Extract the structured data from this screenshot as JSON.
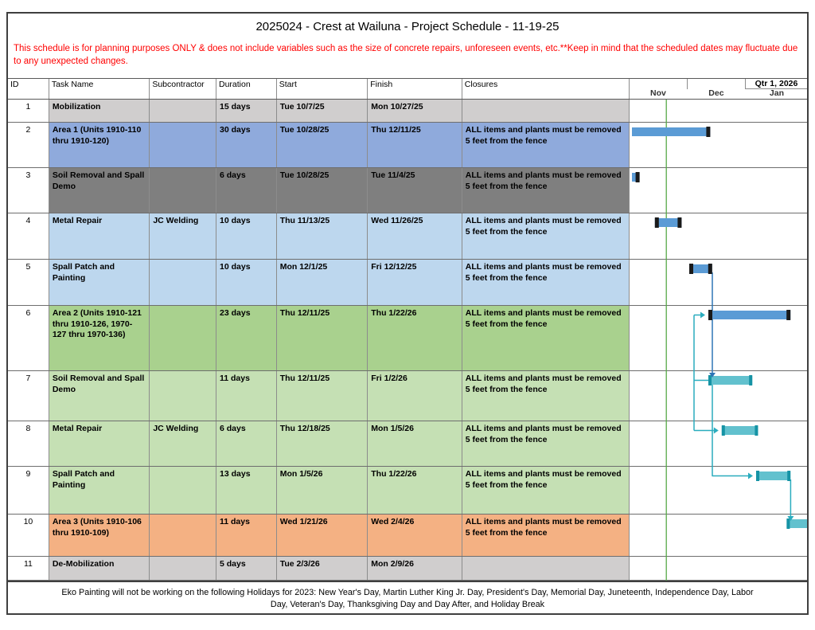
{
  "title": "2025024 - Crest at Wailuna - Project Schedule - 11-19-25",
  "disclaimer": "This schedule is for planning purposes ONLY & does not include variables such as the size of concrete repairs, unforeseen events, etc.**Keep in mind that the scheduled dates may fluctuate due to any unexpected changes.",
  "footer_note": "Eko Painting will not be working on the following Holidays for 2023: New Year's Day, Martin Luther King Jr. Day, President's Day, Memorial Day, Juneteenth, Independence Day, Labor Day, Veteran's Day, Thanksgiving Day and Day After, and Holiday Break",
  "columns": [
    "ID",
    "Task Name",
    "Subcontractor",
    "Duration",
    "Start",
    "Finish",
    "Closures"
  ],
  "timeline": {
    "quarter_label": "Qtr 1, 2026",
    "months": [
      "Nov",
      "Dec",
      "Jan"
    ],
    "status_date": "11/19/25",
    "status_line_color": "#56A946"
  },
  "colors": {
    "bar_blue": "#5B9BD5",
    "bar_blue_cap": "#1a1a1a",
    "bar_teal": "#62C1CE",
    "bar_teal_cap": "#1693A5",
    "link_blue": "#2E75B6",
    "link_teal": "#2AACBE"
  },
  "chart_data": {
    "type": "gantt",
    "window_start": "11/1/25",
    "pixels_per_day": 2.4,
    "tasks": [
      {
        "id": 1,
        "name": "Mobilization",
        "subcontractor": "",
        "duration": "15 days",
        "start": "Tue 10/7/25",
        "finish": "Mon 10/27/25",
        "closures": "",
        "row_color": "#D0CECE",
        "bar": "none"
      },
      {
        "id": 2,
        "name": "Area 1 (Units 1910-110 thru 1910-120)",
        "subcontractor": "",
        "duration": "30 days",
        "start": "Tue 10/28/25",
        "finish": "Thu 12/11/25",
        "closures": "ALL items and plants must be removed 5 feet from the fence",
        "row_color": "#8FAADC",
        "bar": "blue"
      },
      {
        "id": 3,
        "name": "Soil Removal and Spall Demo",
        "subcontractor": "",
        "duration": "6 days",
        "start": "Tue 10/28/25",
        "finish": "Tue 11/4/25",
        "closures": "ALL items and plants must be removed 5 feet from the fence",
        "row_color": "#7F7F7F",
        "bar": "blue"
      },
      {
        "id": 4,
        "name": "Metal Repair",
        "subcontractor": "JC Welding",
        "duration": "10 days",
        "start": "Thu 11/13/25",
        "finish": "Wed 11/26/25",
        "closures": "ALL items and plants must be removed 5 feet from the fence",
        "row_color": "#BDD7EE",
        "bar": "blue"
      },
      {
        "id": 5,
        "name": "Spall Patch and Painting",
        "subcontractor": "",
        "duration": "10 days",
        "start": "Mon 12/1/25",
        "finish": "Fri 12/12/25",
        "closures": "ALL items and plants must be removed 5 feet from the fence",
        "row_color": "#BDD7EE",
        "bar": "blue"
      },
      {
        "id": 6,
        "name": "Area 2 (Units 1910-121 thru 1910-126, 1970-127 thru 1970-136)",
        "subcontractor": "",
        "duration": "23 days",
        "start": "Thu 12/11/25",
        "finish": "Thu 1/22/26",
        "closures": "ALL items and plants must be removed 5 feet from the fence",
        "row_color": "#A9D18E",
        "bar": "blue"
      },
      {
        "id": 7,
        "name": "Soil Removal and Spall Demo",
        "subcontractor": "",
        "duration": "11 days",
        "start": "Thu 12/11/25",
        "finish": "Fri 1/2/26",
        "closures": "ALL items and plants must be removed 5 feet from the fence",
        "row_color": "#C5E0B4",
        "bar": "teal"
      },
      {
        "id": 8,
        "name": "Metal Repair",
        "subcontractor": "JC Welding",
        "duration": "6 days",
        "start": "Thu 12/18/25",
        "finish": "Mon 1/5/26",
        "closures": "ALL items and plants must be removed 5 feet from the fence",
        "row_color": "#C5E0B4",
        "bar": "teal"
      },
      {
        "id": 9,
        "name": "Spall Patch and Painting",
        "subcontractor": "",
        "duration": "13 days",
        "start": "Mon 1/5/26",
        "finish": "Thu 1/22/26",
        "closures": "ALL items and plants must be removed 5 feet from the fence",
        "row_color": "#C5E0B4",
        "bar": "teal"
      },
      {
        "id": 10,
        "name": "Area 3 (Units 1910-106 thru 1910-109)",
        "subcontractor": "",
        "duration": "11 days",
        "start": "Wed 1/21/26",
        "finish": "Wed 2/4/26",
        "closures": "ALL items and plants must be removed 5 feet from the fence",
        "row_color": "#F4B183",
        "bar": "teal"
      },
      {
        "id": 11,
        "name": "De-Mobilization",
        "subcontractor": "",
        "duration": "5 days",
        "start": "Tue 2/3/26",
        "finish": "Mon 2/9/26",
        "closures": "",
        "row_color": "#D0CECE",
        "bar": "none"
      }
    ],
    "links": [
      {
        "route": "end-drop",
        "from": 5,
        "to": 7,
        "color": "blue"
      },
      {
        "route": "rail",
        "stops": [
          6,
          7,
          8
        ],
        "color": "teal"
      },
      {
        "route": "start-drop",
        "from": 7,
        "to": 9,
        "color": "teal"
      },
      {
        "route": "end-drop",
        "from": 9,
        "to": 10,
        "color": "teal"
      }
    ]
  }
}
